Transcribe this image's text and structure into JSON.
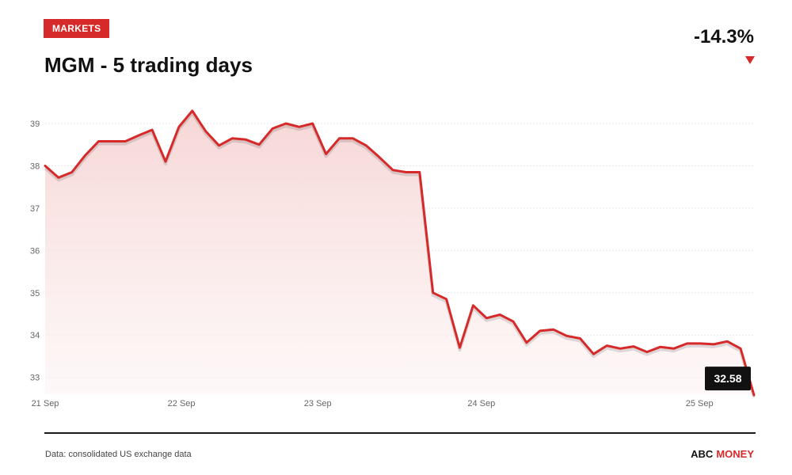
{
  "header": {
    "badge": "MARKETS",
    "title": "MGM - 5 trading days",
    "change": "-14.3%"
  },
  "footer": {
    "source": "Data: consolidated US exchange data",
    "brand_part1": "ABC",
    "brand_part2": "MONEY"
  },
  "colors": {
    "accent": "#d62a2a",
    "line": "#d62a2a",
    "fill": "#f8dcdc",
    "grid": "#e6e6e6",
    "tooltip_bg": "#111111"
  },
  "chart_data": {
    "type": "area",
    "title": "MGM - 5 trading days",
    "ylim": [
      32.6,
      39.3
    ],
    "yticks": [
      33,
      34,
      35,
      36,
      37,
      38,
      39
    ],
    "xlim": [
      0,
      52
    ],
    "xticks": [
      {
        "label": "21 Sep",
        "x": 0
      },
      {
        "label": "22 Sep",
        "x": 10
      },
      {
        "label": "23 Sep",
        "x": 20
      },
      {
        "label": "24 Sep",
        "x": 32
      },
      {
        "label": "25 Sep",
        "x": 48
      }
    ],
    "grid": true,
    "last_value_label": "32.58",
    "series": [
      {
        "values": [
          38.0,
          37.72,
          37.85,
          38.25,
          38.58,
          38.58,
          38.58,
          38.72,
          38.85,
          38.1,
          38.92,
          39.3,
          38.82,
          38.48,
          38.65,
          38.62,
          38.5,
          38.88,
          39.0,
          38.92,
          39.0,
          38.28,
          38.65,
          38.65,
          38.48,
          38.2,
          37.9,
          37.85,
          37.85,
          35.0,
          34.85,
          33.7,
          34.7,
          34.4,
          34.48,
          34.32,
          33.82,
          34.1,
          34.13,
          33.98,
          33.92,
          33.55,
          33.75,
          33.68,
          33.73,
          33.6,
          33.72,
          33.68,
          33.8,
          33.8,
          33.78,
          33.85,
          33.68,
          32.58
        ]
      }
    ]
  }
}
